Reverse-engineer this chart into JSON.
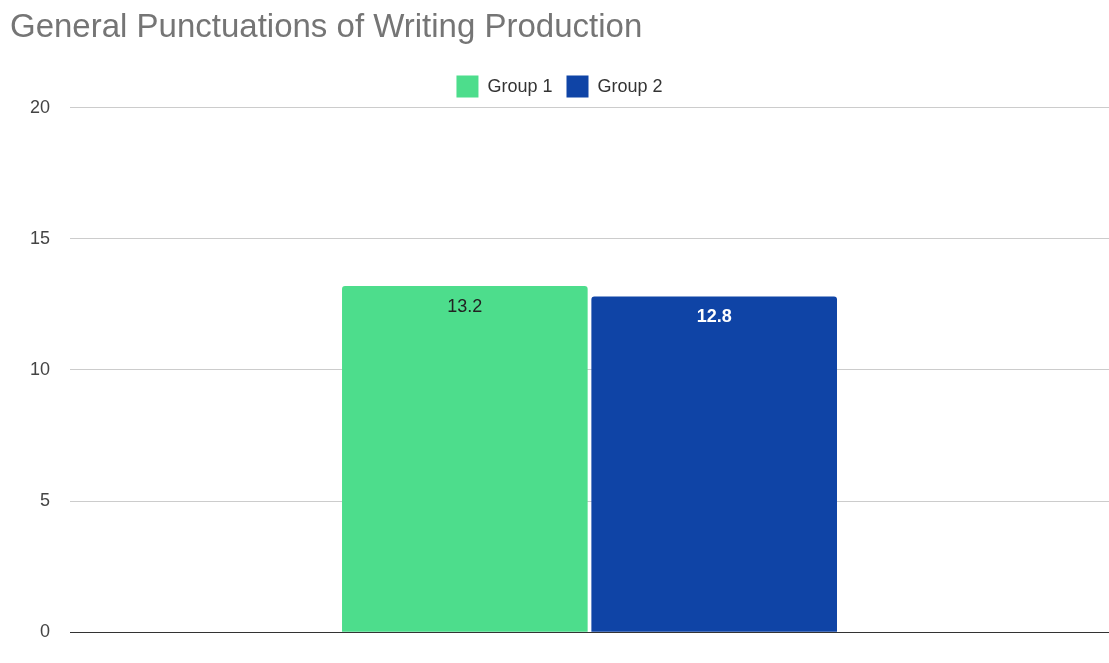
{
  "chart_data": {
    "type": "bar",
    "title": "General Punctuations of Writing Production",
    "categories": [
      null
    ],
    "series": [
      {
        "name": "Group 1",
        "color": "#4ddd8c",
        "values": [
          13.2
        ]
      },
      {
        "name": "Group 2",
        "color": "#0f44a6",
        "values": [
          12.8
        ]
      }
    ],
    "ylim": [
      0,
      20
    ],
    "yticks": [
      0,
      5,
      10,
      15,
      20
    ],
    "grid": "y",
    "legend": "top",
    "data_labels": true
  }
}
